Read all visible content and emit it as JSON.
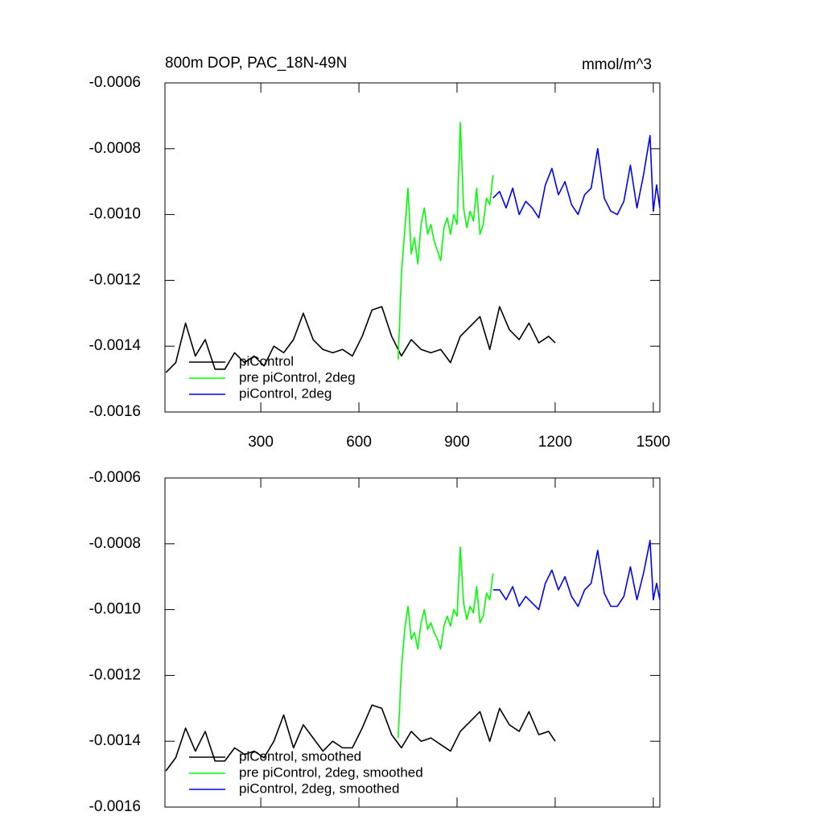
{
  "chart_data": [
    {
      "type": "line",
      "title": "800m DOP, PAC_18N-49N",
      "units": "mmol/m^3",
      "xlim": [
        7,
        1520
      ],
      "xticks": [
        300,
        600,
        900,
        1200,
        1500
      ],
      "xtick_labels": true,
      "ylim": [
        -0.0016,
        -0.0006
      ],
      "yticks": [
        -0.0006,
        -0.0008,
        {
          "value": -0.001,
          "label": "-0.0010"
        },
        -0.0012,
        -0.0014,
        -0.0016
      ],
      "series": [
        {
          "name": "piControl",
          "color": "#000000",
          "x": [
            10,
            40,
            70,
            100,
            130,
            160,
            190,
            220,
            250,
            280,
            310,
            340,
            370,
            400,
            430,
            460,
            490,
            520,
            550,
            580,
            610,
            640,
            670,
            700,
            730,
            760,
            790,
            820,
            850,
            880,
            910,
            940,
            970,
            1000,
            1030,
            1060,
            1090,
            1120,
            1150,
            1180,
            1200
          ],
          "values": [
            -0.00148,
            -0.00145,
            -0.00133,
            -0.00143,
            -0.00138,
            -0.00147,
            -0.00147,
            -0.00142,
            -0.00145,
            -0.00143,
            -0.00146,
            -0.0014,
            -0.00142,
            -0.00138,
            -0.0013,
            -0.00138,
            -0.00141,
            -0.00142,
            -0.00141,
            -0.00143,
            -0.00137,
            -0.00129,
            -0.00128,
            -0.00137,
            -0.00143,
            -0.00138,
            -0.00141,
            -0.00142,
            -0.00141,
            -0.00145,
            -0.00137,
            -0.00134,
            -0.00131,
            -0.00141,
            -0.00128,
            -0.00135,
            -0.00138,
            -0.00133,
            -0.00139,
            -0.00137,
            -0.00139
          ]
        },
        {
          "name": "pre piControl, 2deg",
          "color": "#00ff00",
          "x": [
            720,
            730,
            740,
            750,
            760,
            770,
            780,
            790,
            800,
            810,
            820,
            830,
            840,
            850,
            860,
            870,
            880,
            890,
            900,
            910,
            920,
            930,
            940,
            950,
            960,
            970,
            980,
            990,
            1000,
            1010
          ],
          "values": [
            -0.00144,
            -0.00118,
            -0.00105,
            -0.00092,
            -0.00112,
            -0.00107,
            -0.00115,
            -0.00103,
            -0.00098,
            -0.00106,
            -0.00103,
            -0.00108,
            -0.00111,
            -0.00114,
            -0.00104,
            -0.00101,
            -0.00106,
            -0.001,
            -0.00103,
            -0.00072,
            -0.00098,
            -0.00104,
            -0.00099,
            -0.00102,
            -0.00092,
            -0.00106,
            -0.00103,
            -0.00095,
            -0.00097,
            -0.00088
          ]
        },
        {
          "name": "piControl, 2deg",
          "color": "#0000ff",
          "x": [
            1010,
            1030,
            1050,
            1070,
            1090,
            1110,
            1130,
            1150,
            1170,
            1190,
            1210,
            1230,
            1250,
            1270,
            1290,
            1310,
            1330,
            1350,
            1370,
            1390,
            1410,
            1430,
            1450,
            1470,
            1490,
            1500,
            1510,
            1520
          ],
          "values": [
            -0.00095,
            -0.00093,
            -0.00098,
            -0.00092,
            -0.001,
            -0.00096,
            -0.00098,
            -0.00101,
            -0.00091,
            -0.00086,
            -0.00094,
            -0.0009,
            -0.00097,
            -0.001,
            -0.00094,
            -0.00092,
            -0.0008,
            -0.00095,
            -0.00099,
            -0.001,
            -0.00096,
            -0.00085,
            -0.00098,
            -0.00088,
            -0.00076,
            -0.00099,
            -0.00091,
            -0.00098
          ]
        }
      ]
    },
    {
      "type": "line",
      "xlim": [
        7,
        1520
      ],
      "xticks": [
        300,
        600,
        900,
        1200,
        1500
      ],
      "xtick_labels": false,
      "ylim": [
        -0.0016,
        -0.0006
      ],
      "yticks": [
        -0.0006,
        -0.0008,
        {
          "value": -0.001,
          "label": "-0.0010"
        },
        -0.0012,
        -0.0014,
        -0.0016
      ],
      "series": [
        {
          "name": "piControl, smoothed",
          "color": "#000000",
          "x": [
            10,
            40,
            70,
            100,
            130,
            160,
            190,
            220,
            250,
            280,
            310,
            340,
            370,
            400,
            430,
            460,
            490,
            520,
            550,
            580,
            610,
            640,
            670,
            700,
            730,
            760,
            790,
            820,
            850,
            880,
            910,
            940,
            970,
            1000,
            1030,
            1060,
            1090,
            1120,
            1150,
            1180,
            1200
          ],
          "values": [
            -0.00149,
            -0.00145,
            -0.00136,
            -0.00143,
            -0.00137,
            -0.00146,
            -0.00146,
            -0.00142,
            -0.00144,
            -0.00143,
            -0.00145,
            -0.0014,
            -0.00132,
            -0.00142,
            -0.00135,
            -0.00139,
            -0.00143,
            -0.0014,
            -0.00142,
            -0.00142,
            -0.00136,
            -0.00129,
            -0.0013,
            -0.00138,
            -0.00142,
            -0.00137,
            -0.0014,
            -0.00139,
            -0.00141,
            -0.00143,
            -0.00137,
            -0.00134,
            -0.00131,
            -0.0014,
            -0.0013,
            -0.00135,
            -0.00137,
            -0.00131,
            -0.00138,
            -0.00137,
            -0.0014
          ]
        },
        {
          "name": "pre piControl, 2deg, smoothed",
          "color": "#00ff00",
          "x": [
            720,
            730,
            740,
            750,
            760,
            770,
            780,
            790,
            800,
            810,
            820,
            830,
            840,
            850,
            860,
            870,
            880,
            890,
            900,
            910,
            920,
            930,
            940,
            950,
            960,
            970,
            980,
            990,
            1000,
            1010
          ],
          "values": [
            -0.00139,
            -0.00118,
            -0.00106,
            -0.00099,
            -0.00109,
            -0.00107,
            -0.00112,
            -0.00104,
            -0.001,
            -0.00106,
            -0.00104,
            -0.00107,
            -0.00109,
            -0.00112,
            -0.00105,
            -0.00102,
            -0.00105,
            -0.001,
            -0.00102,
            -0.00081,
            -0.00098,
            -0.00103,
            -0.00099,
            -0.00101,
            -0.00093,
            -0.00104,
            -0.00102,
            -0.00095,
            -0.00097,
            -0.00089
          ]
        },
        {
          "name": "piControl, 2deg, smoothed",
          "color": "#0000ff",
          "x": [
            1010,
            1030,
            1050,
            1070,
            1090,
            1110,
            1130,
            1150,
            1170,
            1190,
            1210,
            1230,
            1250,
            1270,
            1290,
            1310,
            1330,
            1350,
            1370,
            1390,
            1410,
            1430,
            1450,
            1470,
            1490,
            1500,
            1510,
            1520
          ],
          "values": [
            -0.00094,
            -0.00094,
            -0.00097,
            -0.00093,
            -0.00099,
            -0.00096,
            -0.00098,
            -0.001,
            -0.00092,
            -0.00088,
            -0.00094,
            -0.0009,
            -0.00096,
            -0.00099,
            -0.00094,
            -0.00092,
            -0.00082,
            -0.00095,
            -0.00099,
            -0.00099,
            -0.00096,
            -0.00087,
            -0.00097,
            -0.00089,
            -0.00079,
            -0.00097,
            -0.00092,
            -0.00097
          ]
        }
      ]
    }
  ]
}
